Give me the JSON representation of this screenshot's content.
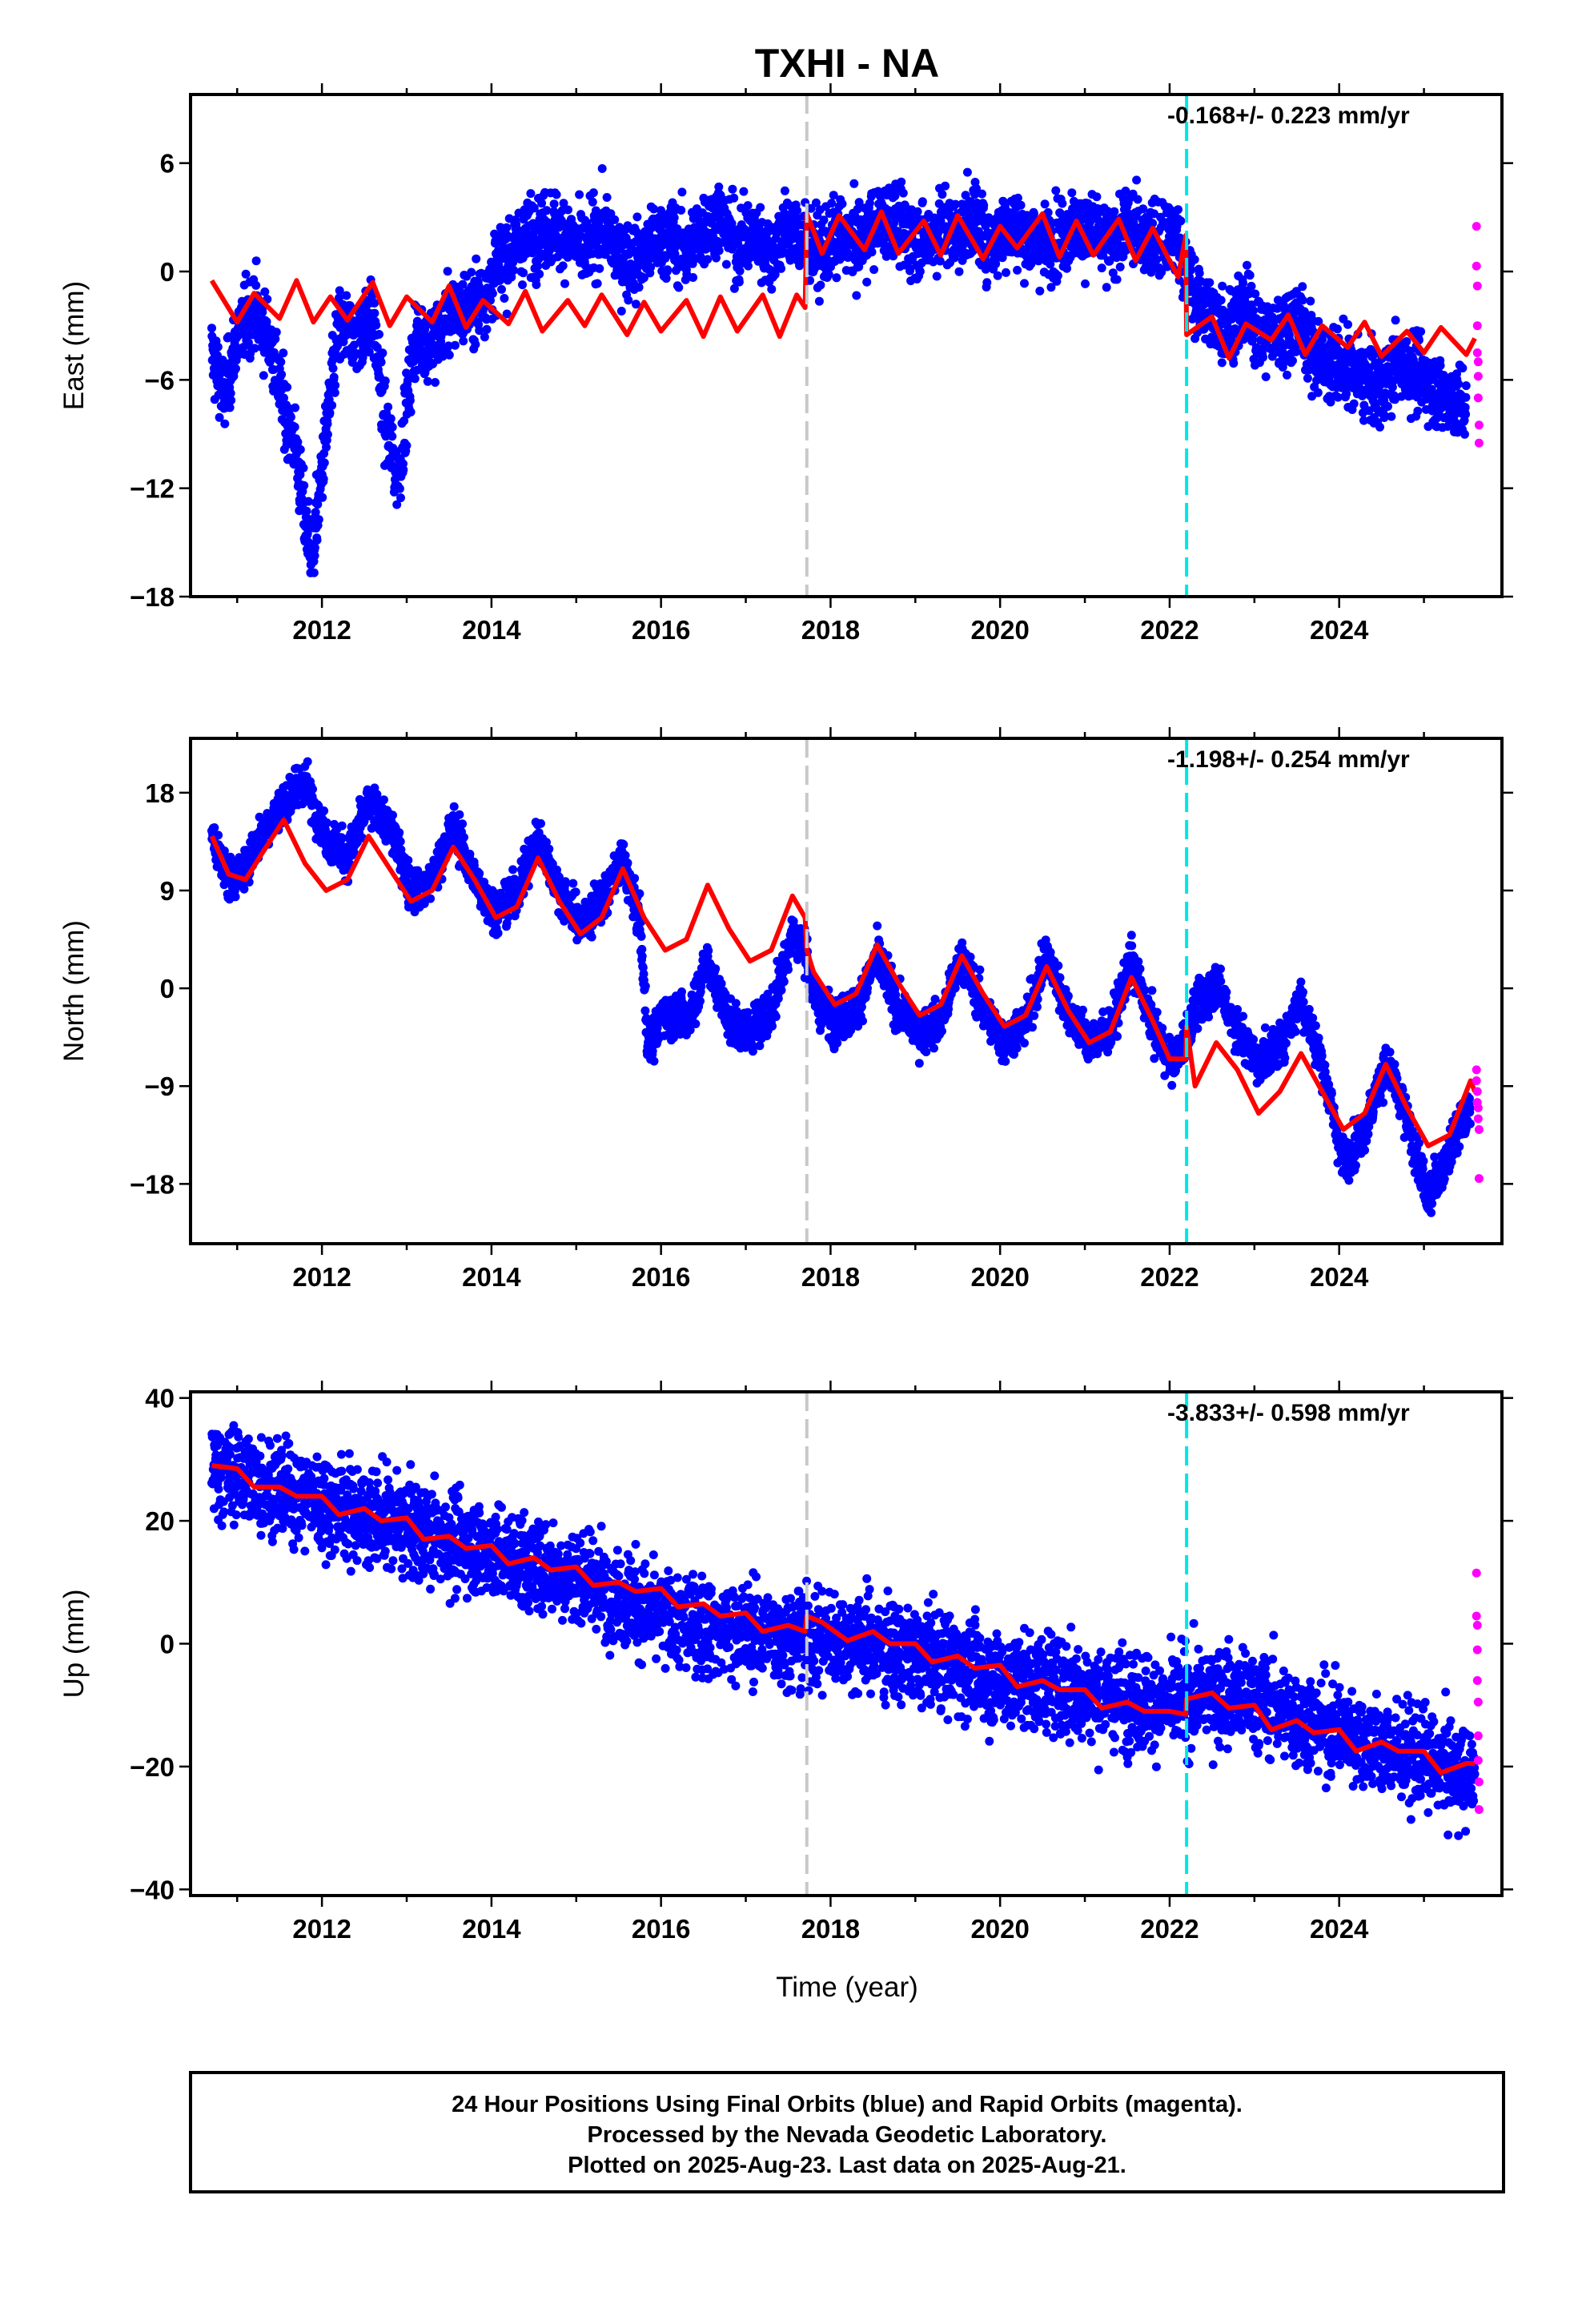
{
  "title": "TXHI - NA",
  "x_tick_labels": [
    "2012",
    "2014",
    "2016",
    "2018",
    "2020",
    "2022",
    "2024"
  ],
  "xlabel": "Time (year)",
  "chart_data": [
    {
      "type": "scatter",
      "component": "East",
      "ylabel": "East (mm)",
      "rate_label": "-0.168+/- 0.223 mm/yr",
      "ylim": [
        -18,
        9.8
      ],
      "yticks": [
        -18,
        -12,
        -6,
        0,
        6
      ],
      "ytick_labels": [
        "−18",
        "−12",
        "−6",
        "0",
        "6"
      ],
      "xlim": [
        2010.45,
        2025.92
      ],
      "events": [
        {
          "x": 2017.72,
          "color": "#c8c8c8"
        },
        {
          "x": 2022.2,
          "color": "#00e5e5"
        }
      ],
      "model_series": {
        "name": "model",
        "color": "#ff0000",
        "x": [
          2010.7,
          2011.0,
          2011.2,
          2011.5,
          2011.7,
          2011.9,
          2012.1,
          2012.3,
          2012.6,
          2012.8,
          2013.0,
          2013.3,
          2013.5,
          2013.7,
          2013.9,
          2014.2,
          2014.4,
          2014.6,
          2014.9,
          2015.1,
          2015.3,
          2015.6,
          2015.8,
          2016.0,
          2016.3,
          2016.5,
          2016.7,
          2016.9,
          2017.2,
          2017.4,
          2017.6,
          2017.7,
          2017.72,
          2017.9,
          2018.1,
          2018.4,
          2018.6,
          2018.8,
          2019.1,
          2019.3,
          2019.5,
          2019.8,
          2020.0,
          2020.2,
          2020.5,
          2020.7,
          2020.9,
          2021.1,
          2021.4,
          2021.6,
          2021.8,
          2022.1,
          2022.19,
          2022.2,
          2022.5,
          2022.7,
          2022.9,
          2023.2,
          2023.4,
          2023.6,
          2023.8,
          2024.1,
          2024.3,
          2024.5,
          2024.8,
          2025.0,
          2025.2,
          2025.5,
          2025.6
        ],
        "y": [
          -0.5,
          -2.8,
          -1.2,
          -2.6,
          -0.5,
          -2.8,
          -1.4,
          -2.7,
          -0.6,
          -3.0,
          -1.4,
          -2.8,
          -0.8,
          -3.1,
          -1.6,
          -2.9,
          -1.1,
          -3.3,
          -1.6,
          -3.0,
          -1.3,
          -3.5,
          -1.7,
          -3.3,
          -1.6,
          -3.6,
          -1.4,
          -3.3,
          -1.3,
          -3.6,
          -1.3,
          -2.0,
          3.2,
          1.0,
          3.1,
          1.2,
          3.3,
          1.0,
          2.8,
          0.9,
          3.1,
          0.7,
          2.5,
          1.3,
          3.2,
          0.8,
          2.8,
          0.9,
          2.9,
          0.6,
          2.4,
          -0.3,
          2.0,
          -3.5,
          -2.5,
          -4.8,
          -2.9,
          -3.8,
          -2.4,
          -4.6,
          -3.0,
          -4.2,
          -2.8,
          -4.7,
          -3.3,
          -4.5,
          -3.1,
          -4.6,
          -3.7
        ]
      },
      "trend_daily": {
        "name": "Final Orbits (blue)",
        "color": "#0000ff",
        "x": [
          2010.7,
          2010.85,
          2011.0,
          2011.2,
          2011.4,
          2011.55,
          2011.7,
          2011.8,
          2011.9,
          2012.0,
          2012.2,
          2012.4,
          2012.6,
          2012.75,
          2012.9,
          2013.1,
          2013.3,
          2013.5,
          2013.7,
          2013.9,
          2014.1,
          2014.3,
          2014.5,
          2014.7,
          2014.9,
          2015.1,
          2015.3,
          2015.5,
          2015.7,
          2015.9,
          2016.1,
          2016.3,
          2016.5,
          2016.7,
          2016.9,
          2017.1,
          2017.3,
          2017.5,
          2017.7,
          2017.9,
          2018.1,
          2018.3,
          2018.5,
          2018.7,
          2018.9,
          2019.1,
          2019.3,
          2019.5,
          2019.7,
          2019.9,
          2020.1,
          2020.3,
          2020.5,
          2020.7,
          2020.9,
          2021.1,
          2021.3,
          2021.5,
          2021.7,
          2021.9,
          2022.1,
          2022.3,
          2022.5,
          2022.7,
          2022.9,
          2023.1,
          2023.3,
          2023.5,
          2023.7,
          2023.9,
          2024.1,
          2024.3,
          2024.5,
          2024.7,
          2024.9,
          2025.1,
          2025.3,
          2025.5
        ],
        "y": [
          -4.5,
          -7.0,
          -3.5,
          -2.0,
          -4.0,
          -7.5,
          -10.0,
          -14.0,
          -15.5,
          -11.0,
          -3.0,
          -3.5,
          -2.5,
          -8.5,
          -11.5,
          -3.5,
          -4.0,
          -2.5,
          -2.0,
          -1.5,
          0.5,
          1.5,
          2.0,
          2.5,
          2.0,
          1.0,
          2.5,
          1.0,
          0.5,
          1.5,
          2.0,
          1.0,
          2.5,
          3.0,
          1.5,
          2.0,
          1.0,
          2.5,
          1.5,
          1.0,
          2.0,
          1.5,
          2.5,
          3.0,
          2.0,
          1.5,
          2.5,
          2.0,
          3.0,
          1.5,
          2.5,
          2.0,
          1.5,
          2.0,
          2.5,
          2.0,
          1.5,
          2.5,
          2.0,
          1.5,
          2.0,
          -1.5,
          -2.5,
          -3.0,
          -2.0,
          -3.5,
          -3.5,
          -2.5,
          -4.5,
          -5.0,
          -5.5,
          -6.0,
          -6.5,
          -5.0,
          -5.5,
          -6.5,
          -7.0,
          -7.5
        ],
        "scatter_mm": 1.6
      },
      "rapid_points": {
        "name": "Rapid Orbits (magenta)",
        "color": "#ff00ff",
        "x": [
          2025.62,
          2025.62,
          2025.63,
          2025.63,
          2025.63,
          2025.64,
          2025.64,
          2025.64,
          2025.65,
          2025.65
        ],
        "y": [
          2.5,
          0.3,
          -0.8,
          -3.0,
          -4.5,
          -5.0,
          -5.8,
          -7.0,
          -8.5,
          -9.5
        ]
      }
    },
    {
      "type": "scatter",
      "component": "North",
      "ylabel": "North (mm)",
      "rate_label": "-1.198+/- 0.254 mm/yr",
      "ylim": [
        -23.5,
        23
      ],
      "yticks": [
        -18,
        -9,
        0,
        9,
        18
      ],
      "ytick_labels": [
        "−18",
        "−9",
        "0",
        "9",
        "18"
      ],
      "xlim": [
        2010.45,
        2025.92
      ],
      "events": [
        {
          "x": 2017.72,
          "color": "#c8c8c8"
        },
        {
          "x": 2022.2,
          "color": "#00e5e5"
        }
      ],
      "model_series": {
        "name": "model",
        "color": "#ff0000",
        "x": [
          2010.7,
          2010.9,
          2011.1,
          2011.3,
          2011.55,
          2011.8,
          2012.05,
          2012.3,
          2012.55,
          2012.8,
          2013.05,
          2013.3,
          2013.55,
          2013.8,
          2014.05,
          2014.3,
          2014.55,
          2014.8,
          2015.05,
          2015.3,
          2015.55,
          2015.8,
          2016.05,
          2016.3,
          2016.55,
          2016.8,
          2017.05,
          2017.3,
          2017.55,
          2017.7,
          2017.72,
          2017.8,
          2018.05,
          2018.3,
          2018.55,
          2018.8,
          2019.05,
          2019.3,
          2019.55,
          2019.8,
          2020.05,
          2020.3,
          2020.55,
          2020.8,
          2021.05,
          2021.3,
          2021.55,
          2021.8,
          2022.0,
          2022.19,
          2022.2,
          2022.3,
          2022.55,
          2022.8,
          2023.05,
          2023.3,
          2023.55,
          2023.8,
          2024.05,
          2024.3,
          2024.55,
          2024.8,
          2025.05,
          2025.3,
          2025.55,
          2025.6
        ],
        "y": [
          14.0,
          10.5,
          10.0,
          12.5,
          15.5,
          11.5,
          9.0,
          10.0,
          14.0,
          11.0,
          8.0,
          9.0,
          13.0,
          10.0,
          6.5,
          7.5,
          12.0,
          8.0,
          5.0,
          6.5,
          11.0,
          6.5,
          3.5,
          4.5,
          9.5,
          5.5,
          2.5,
          3.5,
          8.5,
          6.5,
          3.5,
          1.5,
          -1.5,
          -0.5,
          4.0,
          0.5,
          -2.5,
          -1.5,
          3.0,
          -0.5,
          -3.5,
          -2.5,
          2.0,
          -2.0,
          -5.0,
          -4.0,
          1.0,
          -3.0,
          -6.5,
          -6.5,
          -3.5,
          -9.0,
          -5.0,
          -7.5,
          -11.5,
          -9.5,
          -6.0,
          -9.5,
          -13.0,
          -11.5,
          -7.0,
          -11.0,
          -14.5,
          -13.5,
          -8.5,
          -9.5
        ]
      },
      "trend_daily": {
        "name": "Final Orbits (blue)",
        "color": "#0000ff",
        "x": [
          2010.7,
          2010.9,
          2011.1,
          2011.3,
          2011.55,
          2011.8,
          2012.05,
          2012.3,
          2012.55,
          2012.8,
          2013.05,
          2013.3,
          2013.55,
          2013.8,
          2014.05,
          2014.3,
          2014.55,
          2014.8,
          2015.05,
          2015.3,
          2015.55,
          2015.75,
          2015.85,
          2016.05,
          2016.3,
          2016.55,
          2016.8,
          2017.05,
          2017.3,
          2017.55,
          2017.7,
          2017.8,
          2018.05,
          2018.3,
          2018.55,
          2018.8,
          2019.05,
          2019.3,
          2019.55,
          2019.8,
          2020.05,
          2020.3,
          2020.55,
          2020.8,
          2021.05,
          2021.3,
          2021.55,
          2021.8,
          2022.05,
          2022.3,
          2022.55,
          2022.8,
          2023.05,
          2023.3,
          2023.55,
          2023.8,
          2024.05,
          2024.3,
          2024.55,
          2024.8,
          2025.05,
          2025.3,
          2025.55
        ],
        "y": [
          14.0,
          10.0,
          11.0,
          14.5,
          17.0,
          19.0,
          14.0,
          12.0,
          17.0,
          15.0,
          9.0,
          10.0,
          15.0,
          10.0,
          7.0,
          9.0,
          14.0,
          9.0,
          6.0,
          8.0,
          12.0,
          6.0,
          -5.5,
          -2.0,
          -3.0,
          2.5,
          -3.0,
          -4.0,
          -2.0,
          5.0,
          4.0,
          -1.0,
          -3.0,
          -2.0,
          3.0,
          -2.0,
          -4.0,
          -3.0,
          3.0,
          -2.0,
          -5.0,
          -3.0,
          3.0,
          -2.0,
          -5.0,
          -4.0,
          2.5,
          -3.5,
          -7.0,
          -2.0,
          0.5,
          -4.0,
          -7.0,
          -5.0,
          -1.0,
          -7.0,
          -16.0,
          -13.0,
          -7.0,
          -12.0,
          -19.5,
          -15.0,
          -11.0
        ],
        "scatter_mm": 1.5
      },
      "rapid_points": {
        "name": "Rapid Orbits (magenta)",
        "color": "#ff00ff",
        "x": [
          2025.62,
          2025.62,
          2025.63,
          2025.63,
          2025.64,
          2025.64,
          2025.65,
          2025.65
        ],
        "y": [
          -7.5,
          -8.5,
          -9.5,
          -10.5,
          -11.0,
          -12.0,
          -13.0,
          -17.5
        ]
      }
    },
    {
      "type": "scatter",
      "component": "Up",
      "ylabel": "Up (mm)",
      "rate_label": "-3.833+/- 0.598 mm/yr",
      "ylim": [
        -41,
        41
      ],
      "yticks": [
        -40,
        -20,
        0,
        20,
        40
      ],
      "ytick_labels": [
        "−40",
        "−20",
        "0",
        "20",
        "40"
      ],
      "xlim": [
        2010.45,
        2025.92
      ],
      "events": [
        {
          "x": 2017.72,
          "color": "#c8c8c8"
        },
        {
          "x": 2022.2,
          "color": "#00e5e5"
        }
      ],
      "model_series": {
        "name": "model",
        "color": "#ff0000",
        "x": [
          2010.7,
          2011.0,
          2011.2,
          2011.5,
          2011.7,
          2012.0,
          2012.2,
          2012.5,
          2012.7,
          2013.0,
          2013.2,
          2013.5,
          2013.7,
          2014.0,
          2014.2,
          2014.5,
          2014.7,
          2015.0,
          2015.2,
          2015.5,
          2015.7,
          2016.0,
          2016.2,
          2016.5,
          2016.7,
          2017.0,
          2017.2,
          2017.5,
          2017.7,
          2017.72,
          2017.9,
          2018.2,
          2018.5,
          2018.7,
          2019.0,
          2019.2,
          2019.5,
          2019.7,
          2020.0,
          2020.2,
          2020.5,
          2020.7,
          2021.0,
          2021.2,
          2021.5,
          2021.7,
          2022.0,
          2022.19,
          2022.2,
          2022.5,
          2022.7,
          2023.0,
          2023.2,
          2023.5,
          2023.7,
          2024.0,
          2024.2,
          2024.5,
          2024.7,
          2025.0,
          2025.2,
          2025.5,
          2025.6
        ],
        "y": [
          29.0,
          28.5,
          25.5,
          25.5,
          24.0,
          24.0,
          21.0,
          22.0,
          20.0,
          20.5,
          17.0,
          17.5,
          15.5,
          16.0,
          13.0,
          14.0,
          12.0,
          12.5,
          9.5,
          10.0,
          8.5,
          9.0,
          6.0,
          6.5,
          4.5,
          5.0,
          2.0,
          3.0,
          2.0,
          4.5,
          3.5,
          0.5,
          2.0,
          0.0,
          0.0,
          -3.0,
          -2.0,
          -4.0,
          -3.5,
          -7.0,
          -6.0,
          -7.5,
          -7.5,
          -10.5,
          -9.5,
          -11.0,
          -11.0,
          -11.5,
          -9.0,
          -8.0,
          -10.5,
          -10.0,
          -14.0,
          -12.5,
          -14.5,
          -14.0,
          -17.5,
          -16.0,
          -17.5,
          -17.5,
          -21.0,
          -19.5,
          -19.5
        ]
      },
      "trend_daily": {
        "name": "Final Orbits (blue)",
        "color": "#0000ff",
        "x": [
          2010.7,
          2011.5,
          2012.5,
          2013.5,
          2014.5,
          2015.0,
          2015.5,
          2016.0,
          2016.5,
          2017.0,
          2017.5,
          2018.0,
          2018.5,
          2019.0,
          2019.5,
          2020.0,
          2020.5,
          2021.0,
          2021.5,
          2022.0,
          2022.5,
          2023.0,
          2023.5,
          2024.0,
          2024.5,
          2025.0,
          2025.6
        ],
        "y": [
          29.0,
          25.0,
          21.0,
          17.0,
          13.0,
          11.0,
          8.0,
          4.0,
          3.0,
          2.0,
          1.0,
          1.0,
          0.0,
          -2.0,
          -3.0,
          -6.0,
          -6.0,
          -8.0,
          -9.0,
          -10.0,
          -8.0,
          -9.0,
          -12.0,
          -14.0,
          -17.0,
          -19.0,
          -22.0
        ],
        "scatter_mm": 6.0
      },
      "rapid_points": {
        "name": "Rapid Orbits (magenta)",
        "color": "#ff00ff",
        "x": [
          2025.62,
          2025.62,
          2025.63,
          2025.63,
          2025.63,
          2025.64,
          2025.64,
          2025.64,
          2025.65,
          2025.65
        ],
        "y": [
          11.5,
          4.5,
          3.0,
          -1.0,
          -6.0,
          -9.5,
          -15.0,
          -19.0,
          -22.5,
          -27.0
        ]
      }
    }
  ],
  "footer": {
    "line1": "24 Hour Positions Using Final Orbits (blue) and Rapid Orbits (magenta).",
    "line2": "Processed by the Nevada Geodetic Laboratory.",
    "line3": "Plotted on 2025-Aug-23. Last data on 2025-Aug-21."
  }
}
